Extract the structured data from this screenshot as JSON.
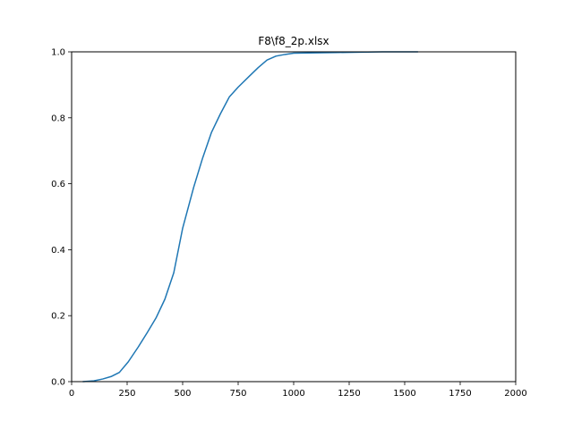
{
  "chart_data": {
    "type": "line",
    "title": "F8\\f8_2p.xlsx",
    "xlabel": "",
    "ylabel": "",
    "xlim": [
      0,
      2000
    ],
    "ylim": [
      0,
      1.0
    ],
    "grid": false,
    "x_ticks": [
      "0",
      "250",
      "500",
      "750",
      "1000",
      "1250",
      "1500",
      "1750",
      "2000"
    ],
    "y_ticks": [
      "0.0",
      "0.2",
      "0.4",
      "0.6",
      "0.8",
      "1.0"
    ],
    "series": [
      {
        "color": "#1f77b4",
        "x": [
          50,
          100,
          140,
          180,
          215,
          255,
          300,
          340,
          380,
          420,
          460,
          500,
          550,
          590,
          630,
          670,
          710,
          750,
          800,
          840,
          880,
          920,
          960,
          1000,
          1100,
          1200,
          1300,
          1400,
          1500,
          1560
        ],
        "y": [
          0.0,
          0.0025,
          0.008,
          0.016,
          0.028,
          0.06,
          0.105,
          0.148,
          0.193,
          0.25,
          0.33,
          0.465,
          0.59,
          0.678,
          0.756,
          0.812,
          0.863,
          0.893,
          0.926,
          0.952,
          0.975,
          0.987,
          0.992,
          0.996,
          0.997,
          0.998,
          0.999,
          1.0,
          1.0,
          1.0
        ]
      }
    ]
  }
}
